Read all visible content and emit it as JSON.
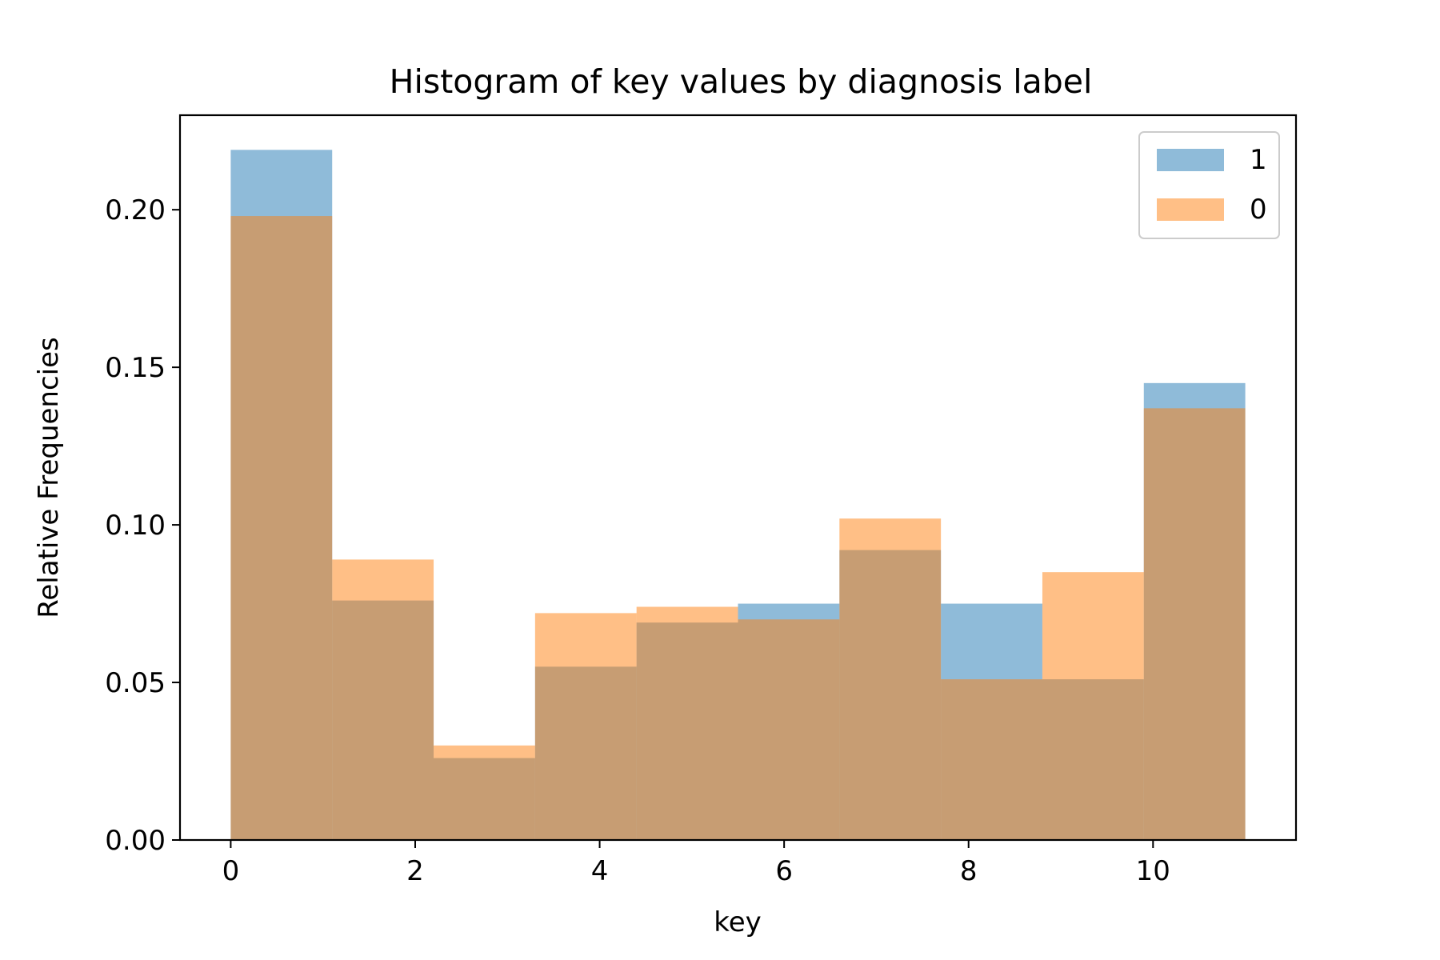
{
  "chart_data": {
    "type": "bar",
    "subtype": "histogram-overlay",
    "title": "Histogram of key values by diagnosis label",
    "xlabel": "key",
    "ylabel": "Relative Frequencies",
    "xlim": [
      -0.55,
      11.55
    ],
    "ylim": [
      0,
      0.23
    ],
    "bin_edges": [
      0,
      1.1,
      2.2,
      3.3,
      4.4,
      5.5,
      6.6,
      7.7,
      8.8,
      9.9,
      11.0
    ],
    "xticks": [
      0,
      2,
      4,
      6,
      8,
      10
    ],
    "xtick_labels": [
      "0",
      "2",
      "4",
      "6",
      "8",
      "10"
    ],
    "yticks": [
      0,
      0.05,
      0.1,
      0.15,
      0.2
    ],
    "ytick_labels": [
      "0.00",
      "0.05",
      "0.10",
      "0.15",
      "0.20"
    ],
    "grid": false,
    "legend_position": "top-right",
    "series": [
      {
        "name": "1",
        "color": "#1f77b4",
        "alpha": 0.5,
        "values": [
          0.219,
          0.076,
          0.026,
          0.055,
          0.069,
          0.075,
          0.092,
          0.075,
          0.051,
          0.145
        ]
      },
      {
        "name": "0",
        "color": "#ff7f0e",
        "alpha": 0.5,
        "values": [
          0.198,
          0.089,
          0.03,
          0.072,
          0.074,
          0.07,
          0.102,
          0.051,
          0.085,
          0.137
        ]
      }
    ]
  }
}
